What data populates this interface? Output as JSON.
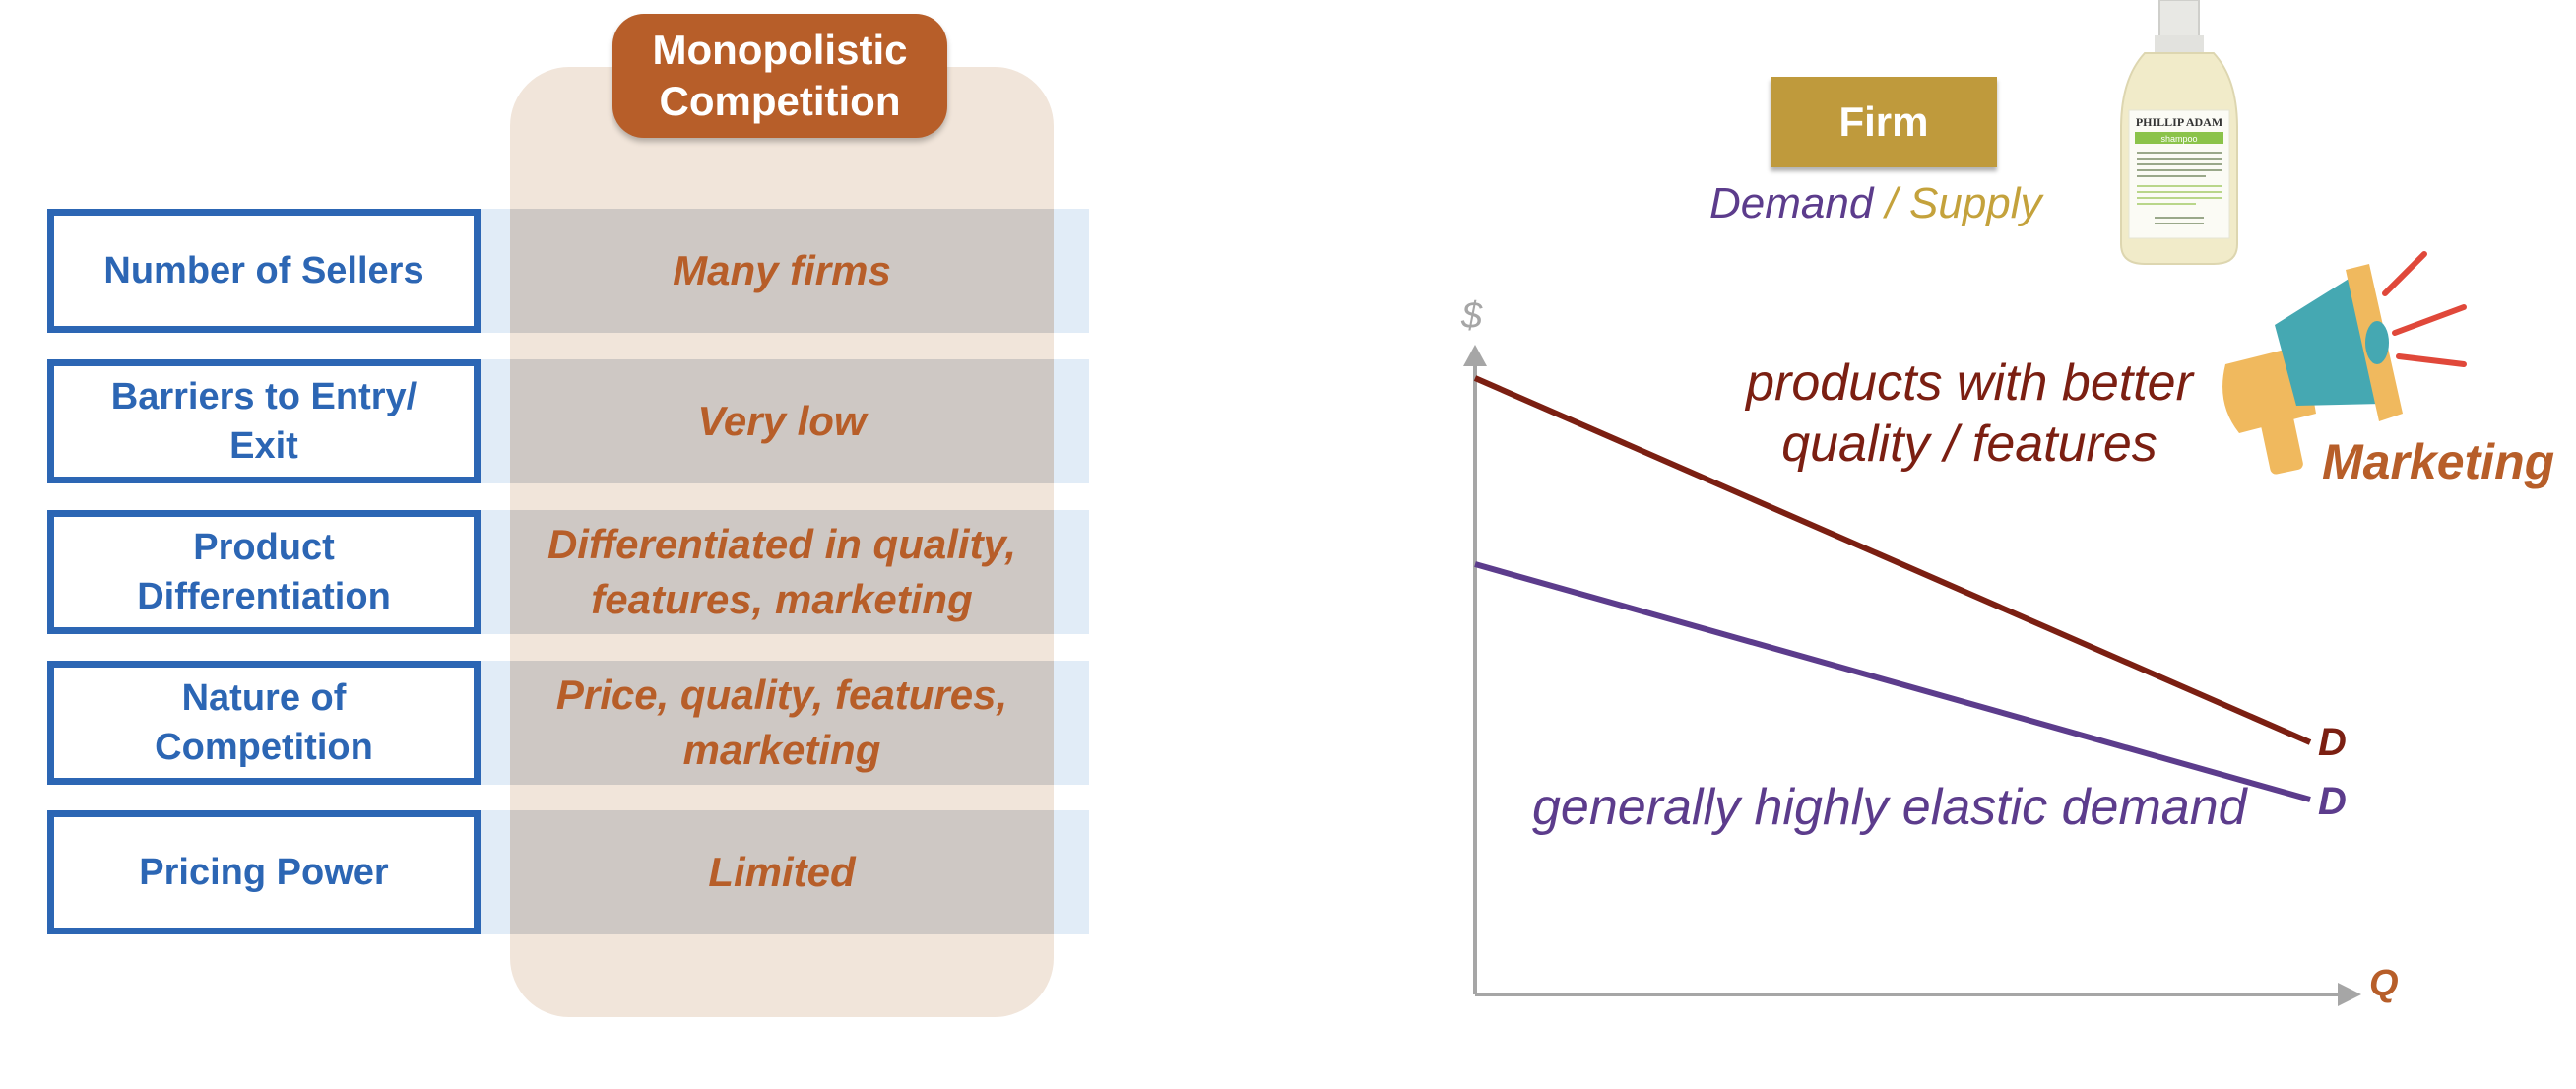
{
  "table": {
    "column_header": "Monopolistic Competition",
    "rows": [
      {
        "label": "Number of Sellers",
        "value": "Many firms"
      },
      {
        "label": "Barriers to Entry/ Exit",
        "value": "Very low"
      },
      {
        "label": "Product Differentiation",
        "value": "Differentiated in quality, features, marketing"
      },
      {
        "label": "Nature of Competition",
        "value": "Price, quality, features, marketing"
      },
      {
        "label": "Pricing Power",
        "value": "Limited"
      }
    ]
  },
  "diagram": {
    "firm_label": "Firm",
    "demand_word": "Demand",
    "slash": " / ",
    "supply_word": "Supply",
    "y_axis_label": "$",
    "x_axis_label": "Q",
    "upper_curve_label": "D",
    "lower_curve_label": "D",
    "upper_annotation": "products with better quality / features",
    "lower_annotation": "generally highly elastic demand",
    "marketing_label": "Marketing",
    "bottle_brand": "PHILLIP ADAM",
    "bottle_product": "shampoo",
    "colors": {
      "upper_curve": "#7b1f12",
      "lower_curve": "#5c3c8c",
      "axis": "#a6a6a6"
    }
  }
}
